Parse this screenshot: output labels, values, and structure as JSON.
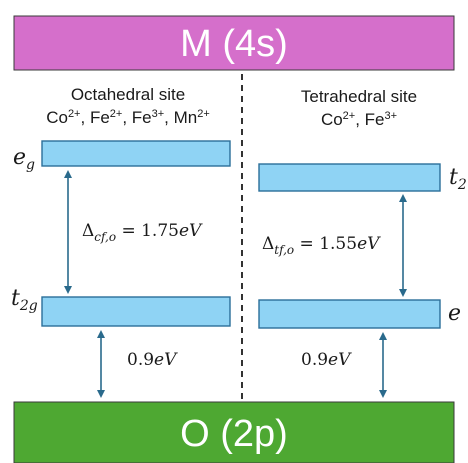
{
  "bands": {
    "top": {
      "label": "M (4s)",
      "color": "#d56fcb"
    },
    "bottom": {
      "label": "O (2p)",
      "color": "#4ea832"
    }
  },
  "octahedral": {
    "title": "Octahedral site",
    "ions": [
      {
        "base": "Co",
        "charge": "2+"
      },
      {
        "base": "Fe",
        "charge": "2+"
      },
      {
        "base": "Fe",
        "charge": "3+"
      },
      {
        "base": "Mn",
        "charge": "2+"
      }
    ],
    "upper_level": {
      "main": "e",
      "sub": "g"
    },
    "lower_level": {
      "main": "t",
      "sub": "2g"
    },
    "splitting": {
      "symbol": "Δ",
      "sub": "cf,o",
      "eq": " = 1.75",
      "unit": "eV"
    },
    "gap": {
      "value": "0.9",
      "unit": "eV"
    }
  },
  "tetrahedral": {
    "title": "Tetrahedral site",
    "ions": [
      {
        "base": "Co",
        "charge": "2+"
      },
      {
        "base": "Fe",
        "charge": "3+"
      }
    ],
    "upper_level": {
      "main": "t",
      "sub": "2"
    },
    "lower_level": {
      "main": "e",
      "sub": ""
    },
    "splitting": {
      "symbol": "Δ",
      "sub": "tf,o",
      "eq": " = 1.55",
      "unit": "eV"
    },
    "gap": {
      "value": "0.9",
      "unit": "eV"
    }
  },
  "colors": {
    "level_fill": "#8fd3f4",
    "level_stroke": "#2b6f99",
    "arrow": "#2a6a8c",
    "divider": "#000000"
  }
}
